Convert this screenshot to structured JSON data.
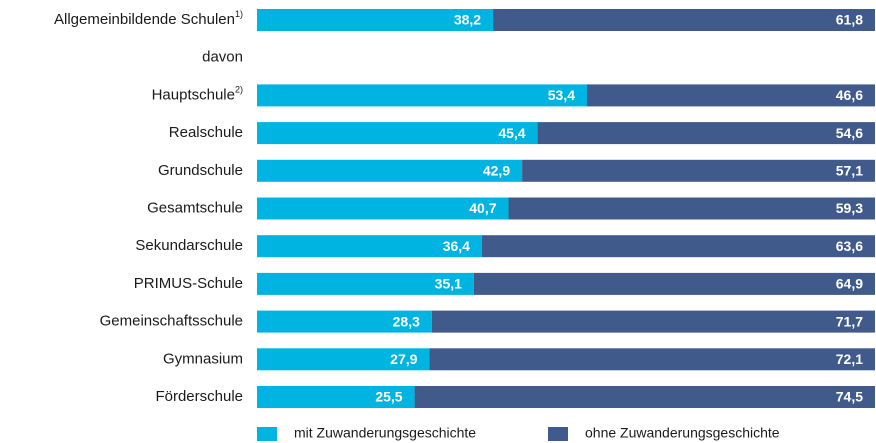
{
  "chart_data": {
    "type": "stacked-bar-horizontal",
    "categories": [
      "Allgemeinbildende Schulen",
      "davon",
      "Hauptschule",
      "Realschule",
      "Grundschule",
      "Gesamtschule",
      "Sekundarschule",
      "PRIMUS-Schule",
      "Gemeinschaftsschule",
      "Gymnasium",
      "Förderschule"
    ],
    "footnote_marks": [
      "1)",
      null,
      "2)",
      null,
      null,
      null,
      null,
      null,
      null,
      null,
      null
    ],
    "xlim": [
      0,
      100
    ],
    "series": [
      {
        "name": "mit Zuwanderungsgeschichte",
        "color": "#00b4e1",
        "values": [
          38.2,
          null,
          53.4,
          45.4,
          42.9,
          40.7,
          36.4,
          35.1,
          28.3,
          27.9,
          25.5
        ],
        "value_labels": [
          "38,2",
          null,
          "53,4",
          "45,4",
          "42,9",
          "40,7",
          "36,4",
          "35,1",
          "28,3",
          "27,9",
          "25,5"
        ]
      },
      {
        "name": "ohne Zuwanderungsgeschichte",
        "color": "#415a8c",
        "values": [
          61.8,
          null,
          46.6,
          54.6,
          57.1,
          59.3,
          63.6,
          64.9,
          71.7,
          72.1,
          74.5
        ],
        "value_labels": [
          "61,8",
          null,
          "46,6",
          "54,6",
          "57,1",
          "59,3",
          "63,6",
          "64,9",
          "71,7",
          "72,1",
          "74,5"
        ]
      }
    ],
    "legend": "bottom"
  }
}
